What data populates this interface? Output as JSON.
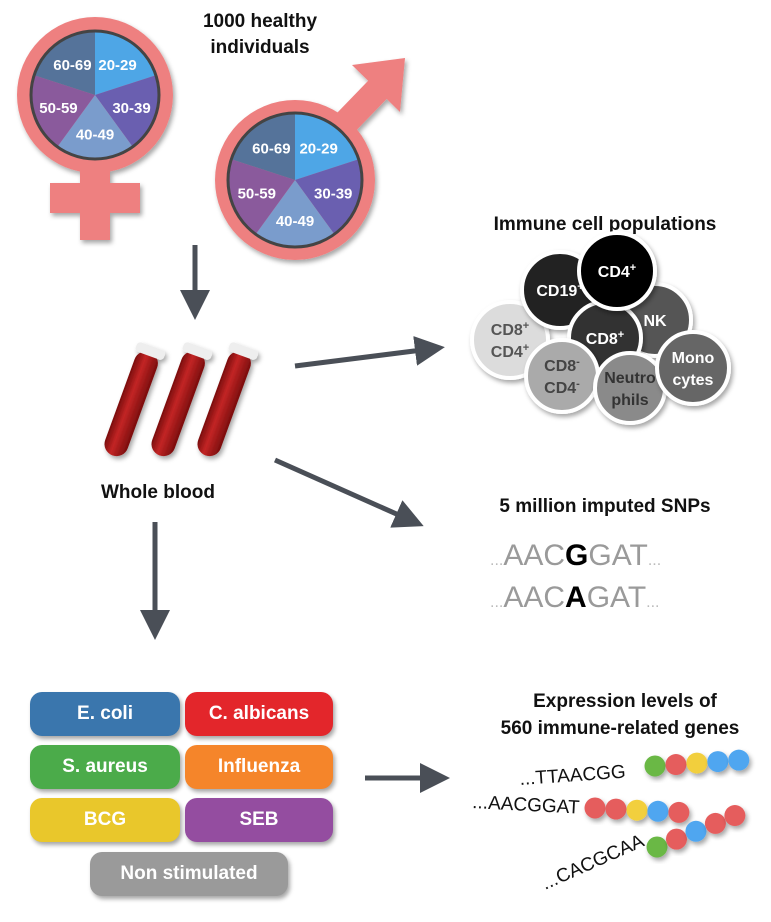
{
  "title": "1000 healthy individuals",
  "title_lines": [
    "1000 healthy",
    "individuals"
  ],
  "age_groups": [
    "20-29",
    "30-39",
    "40-49",
    "50-59",
    "60-69"
  ],
  "age_colors": [
    "#4ea6e6",
    "#6a5fb0",
    "#7a9ccc",
    "#8a5a9c",
    "#55739a"
  ],
  "symbol_color": "#ee8080",
  "blood_label": "Whole blood",
  "immune": {
    "title": "Immune cell populations",
    "cells": [
      {
        "label": [
          "CD8",
          "CD4"
        ],
        "sup": [
          "+",
          "+"
        ],
        "color": "#dcdcdc",
        "text": "#555"
      },
      {
        "label": [
          "CD19"
        ],
        "sup": [
          "+"
        ],
        "color": "#222222",
        "text": "#fff"
      },
      {
        "label": [
          "NK"
        ],
        "sup": [
          ""
        ],
        "color": "#555555",
        "text": "#fff"
      },
      {
        "label": [
          "CD8"
        ],
        "sup": [
          "+"
        ],
        "color": "#333333",
        "text": "#fff"
      },
      {
        "label": [
          "CD4"
        ],
        "sup": [
          "+"
        ],
        "color": "#000000",
        "text": "#fff"
      },
      {
        "label": [
          "CD8",
          "CD4"
        ],
        "sup": [
          "-",
          "-"
        ],
        "color": "#aaaaaa",
        "text": "#444"
      },
      {
        "label": [
          "Neutro",
          "phils"
        ],
        "sup": [
          "",
          ""
        ],
        "color": "#8a8a8a",
        "text": "#333"
      },
      {
        "label": [
          "Mono",
          "cytes"
        ],
        "sup": [
          "",
          ""
        ],
        "color": "#666666",
        "text": "#fff"
      }
    ]
  },
  "snps": {
    "title": "5 million imputed SNPs",
    "rows": [
      {
        "pre": "AAC",
        "allele": "G",
        "post": "GAT"
      },
      {
        "pre": "AAC",
        "allele": "A",
        "post": "GAT"
      }
    ],
    "ellipsis": "..."
  },
  "stimuli": [
    {
      "label": "E. coli",
      "color": "#3a76ad"
    },
    {
      "label": "C. albicans",
      "color": "#e3262b"
    },
    {
      "label": "S. aureus",
      "color": "#4bab4a"
    },
    {
      "label": "Influenza",
      "color": "#f5852a"
    },
    {
      "label": "BCG",
      "color": "#e9c72b"
    },
    {
      "label": "SEB",
      "color": "#944da0"
    },
    {
      "label": "Non stimulated",
      "color": "#9a9a9a"
    }
  ],
  "expression": {
    "title_lines": [
      "Expression levels of",
      "560 immune-related genes"
    ],
    "strands": [
      {
        "seq": "...TTAACGG",
        "beads": [
          "#6ab845",
          "#e55d5d",
          "#f2cf3d",
          "#4fa6f0",
          "#4fa6f0"
        ]
      },
      {
        "seq": "...AACGGAT",
        "beads": [
          "#e55d5d",
          "#e55d5d",
          "#f2cf3d",
          "#4fa6f0",
          "#e55d5d"
        ]
      },
      {
        "seq": "...CACGCAA",
        "beads": [
          "#6ab845",
          "#e55d5d",
          "#4fa6f0",
          "#e55d5d",
          "#e55d5d"
        ]
      }
    ]
  }
}
